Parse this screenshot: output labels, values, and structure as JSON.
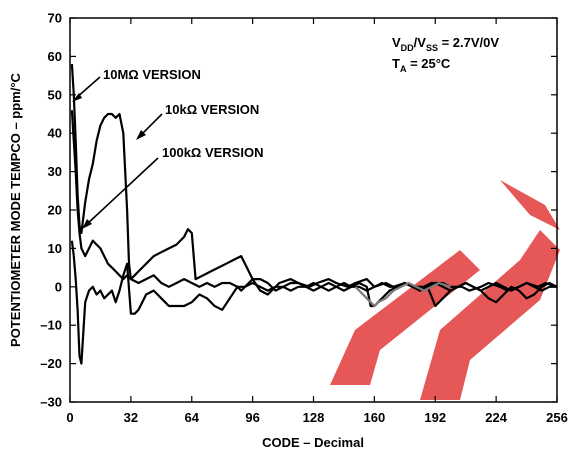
{
  "chart_data": {
    "type": "line",
    "ylabel": "POTENTIOMETER MODE TEMPCO – ppm/°C",
    "xlabel": "CODE – Decimal",
    "xlim": [
      0,
      256
    ],
    "ylim": [
      -30,
      70
    ],
    "x_ticks": [
      0,
      32,
      64,
      96,
      128,
      160,
      192,
      224,
      256
    ],
    "x_tick_labels": [
      "0",
      "32",
      "64",
      "96",
      "128",
      "160",
      "192",
      "224",
      "256"
    ],
    "y_ticks": [
      -30,
      -20,
      -10,
      0,
      10,
      20,
      30,
      40,
      50,
      60,
      70
    ],
    "y_tick_labels": [
      "–30",
      "–20",
      "–10",
      "0",
      "10",
      "20",
      "30",
      "40",
      "50",
      "60",
      "70"
    ],
    "conditions": {
      "supply": {
        "main": "V",
        "sub1": "DD",
        "mid": "/V",
        "sub2": "SS",
        "tail": " = 2.7V/0V"
      },
      "temp": {
        "main": "T",
        "sub": "A",
        "tail": " = 25°C"
      }
    },
    "annotations": [
      {
        "text": "10MΩ VERSION"
      },
      {
        "text": "10kΩ VERSION"
      },
      {
        "text": "100kΩ VERSION"
      }
    ],
    "series": [
      {
        "color": "#000000",
        "x": [
          1,
          2,
          3,
          4,
          5,
          6,
          8,
          10,
          12,
          14,
          16,
          18,
          20,
          22,
          24,
          26,
          28,
          30,
          31,
          32,
          34,
          36,
          40,
          44,
          48,
          52,
          56,
          60,
          62,
          64,
          66,
          70,
          74,
          78,
          82,
          86,
          90,
          96,
          100,
          104,
          110,
          116,
          120,
          126,
          130,
          136,
          140,
          146,
          150,
          156,
          160,
          166,
          170,
          176,
          180,
          186,
          190,
          196,
          200,
          206,
          210,
          216,
          220,
          226,
          230,
          236,
          240,
          246,
          250,
          256
        ],
        "y": [
          58,
          50,
          38,
          24,
          16,
          14,
          22,
          28,
          32,
          38,
          42,
          44,
          45,
          45,
          44,
          45,
          40,
          20,
          6,
          2,
          3,
          4,
          6,
          8,
          9,
          10,
          11,
          13,
          15,
          14,
          2,
          3,
          4,
          5,
          6,
          7,
          8,
          2,
          -1,
          -2,
          1,
          2,
          1,
          0,
          1,
          2,
          1,
          0,
          1,
          2,
          0,
          1,
          0,
          1,
          0,
          0,
          1,
          1,
          0,
          0,
          -1,
          0,
          1,
          0,
          -1,
          0,
          1,
          0,
          1,
          0
        ]
      },
      {
        "color": "#000000",
        "x": [
          1,
          2,
          3,
          4,
          5,
          6,
          8,
          10,
          12,
          14,
          16,
          18,
          20,
          22,
          24,
          26,
          28,
          30,
          32,
          34,
          36,
          38,
          40,
          44,
          48,
          52,
          56,
          60,
          64,
          68,
          72,
          76,
          80,
          84,
          88,
          90,
          92,
          96,
          100,
          104,
          108,
          112,
          116,
          120,
          124,
          128,
          132,
          136,
          140,
          144,
          148,
          152,
          156,
          158,
          160,
          164,
          168,
          172,
          176,
          180,
          184,
          188,
          192,
          196,
          200,
          204,
          208,
          212,
          216,
          220,
          224,
          228,
          232,
          236,
          240,
          244,
          248,
          252,
          256
        ],
        "y": [
          12,
          8,
          2,
          -6,
          -18,
          -20,
          -4,
          -1,
          0,
          -2,
          -1,
          -3,
          -2,
          -1,
          -4,
          -1,
          3,
          6,
          -7,
          -7,
          -6,
          -4,
          -2,
          -1,
          -3,
          -5,
          -5,
          -5,
          -4,
          -2,
          -3,
          -5,
          -6,
          -3,
          0,
          -1,
          0,
          2,
          2,
          1,
          -1,
          0,
          1,
          1,
          0,
          -1,
          0,
          1,
          0,
          -1,
          0,
          1,
          0,
          -5,
          -5,
          -3,
          -1,
          0,
          1,
          0,
          -1,
          0,
          -5,
          -3,
          -1,
          0,
          1,
          0,
          -1,
          -3,
          -4,
          -2,
          0,
          -1,
          -3,
          -2,
          0,
          1,
          0
        ]
      },
      {
        "color": "#000000",
        "x": [
          1,
          2,
          3,
          4,
          5,
          6,
          8,
          10,
          12,
          14,
          16,
          18,
          20,
          22,
          24,
          26,
          28,
          30,
          32,
          36,
          40,
          44,
          48,
          52,
          56,
          60,
          64,
          68,
          72,
          76,
          80,
          84,
          88,
          92,
          96,
          100,
          104,
          108,
          112,
          116,
          120,
          124,
          128,
          132,
          136,
          140,
          144,
          148,
          152,
          156,
          160,
          164,
          168,
          172,
          176,
          180,
          184,
          188,
          192,
          196,
          200,
          204,
          208,
          212,
          216,
          220,
          224,
          228,
          232,
          236,
          240,
          244,
          248,
          252,
          256
        ],
        "y": [
          46,
          38,
          30,
          20,
          14,
          10,
          8,
          10,
          12,
          11,
          10,
          8,
          6,
          5,
          4,
          3,
          2,
          3,
          2,
          1,
          2,
          3,
          1,
          0,
          1,
          2,
          1,
          0,
          1,
          0,
          1,
          1,
          0,
          0,
          1,
          0,
          -1,
          0,
          0,
          -1,
          0,
          0,
          1,
          0,
          -1,
          0,
          1,
          0,
          0,
          -1,
          0,
          1,
          0,
          0,
          1,
          0,
          -1,
          0,
          1,
          0,
          -1,
          0,
          1,
          0,
          -1,
          0,
          1,
          0,
          -1,
          0,
          1,
          0,
          -1,
          0,
          0
        ]
      },
      {
        "color": "#7a7a7a",
        "x": [
          150,
          154,
          158,
          160,
          162,
          166,
          170,
          174,
          178,
          182,
          186,
          190,
          194,
          200
        ],
        "y": [
          0,
          -2,
          -4,
          -5,
          -4,
          -3,
          -1,
          0,
          1,
          0,
          -1,
          0,
          1,
          0
        ]
      }
    ]
  },
  "watermark": {
    "color": "#e23a3a"
  }
}
